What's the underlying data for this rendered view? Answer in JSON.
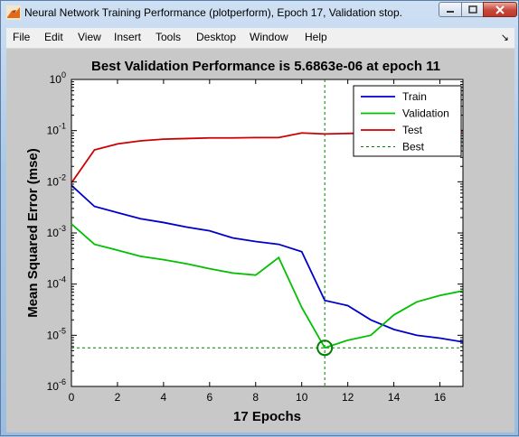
{
  "window": {
    "title": "Neural Network Training Performance (plotperform), Epoch 17, Validation stop."
  },
  "menu": {
    "items": [
      "File",
      "Edit",
      "View",
      "Insert",
      "Tools",
      "Desktop",
      "Window",
      "Help"
    ]
  },
  "chart_data": {
    "type": "line",
    "title": "Best Validation Performance is 5.6863e-06 at epoch 11",
    "xlabel": "17 Epochs",
    "ylabel": "Mean Squared Error  (mse)",
    "xlim": [
      0,
      17
    ],
    "ylim": [
      1e-06,
      1
    ],
    "yscale": "log",
    "x_ticks": [
      0,
      2,
      4,
      6,
      8,
      10,
      12,
      14,
      16
    ],
    "y_ticks": [
      {
        "base": "10",
        "exp": "0",
        "value": 1
      },
      {
        "base": "10",
        "exp": "-1",
        "value": 0.1
      },
      {
        "base": "10",
        "exp": "-2",
        "value": 0.01
      },
      {
        "base": "10",
        "exp": "-3",
        "value": 0.001
      },
      {
        "base": "10",
        "exp": "-4",
        "value": 0.0001
      },
      {
        "base": "10",
        "exp": "-5",
        "value": 1e-05
      },
      {
        "base": "10",
        "exp": "-6",
        "value": 1e-06
      }
    ],
    "x": [
      0,
      1,
      2,
      3,
      4,
      5,
      6,
      7,
      8,
      9,
      10,
      11,
      12,
      13,
      14,
      15,
      16,
      17
    ],
    "series": [
      {
        "name": "Train",
        "color": "#0000cc",
        "values": [
          0.0085,
          0.0033,
          0.0025,
          0.0019,
          0.0016,
          0.0013,
          0.0011,
          0.0008,
          0.00068,
          0.0006,
          0.00043,
          4.8e-05,
          3.8e-05,
          2e-05,
          1.3e-05,
          1e-05,
          8.8e-06,
          7.4e-06
        ]
      },
      {
        "name": "Validation",
        "color": "#00c000",
        "values": [
          0.0015,
          0.0006,
          0.00046,
          0.00035,
          0.0003,
          0.00025,
          0.0002,
          0.000165,
          0.00015,
          0.00033,
          3.5e-05,
          5.6863e-06,
          8e-06,
          1e-05,
          2.5e-05,
          4.5e-05,
          6e-05,
          7.4e-05
        ]
      },
      {
        "name": "Test",
        "color": "#cc0000",
        "values": [
          0.0095,
          0.042,
          0.055,
          0.063,
          0.068,
          0.07,
          0.072,
          0.072,
          0.073,
          0.073,
          0.09,
          0.086,
          0.088,
          0.09,
          0.092,
          0.095,
          0.1,
          0.1
        ]
      }
    ],
    "best": {
      "name": "Best",
      "color": "#008000",
      "epoch": 11,
      "value": 5.6863e-06
    },
    "legend": "top-right",
    "grid": false
  }
}
